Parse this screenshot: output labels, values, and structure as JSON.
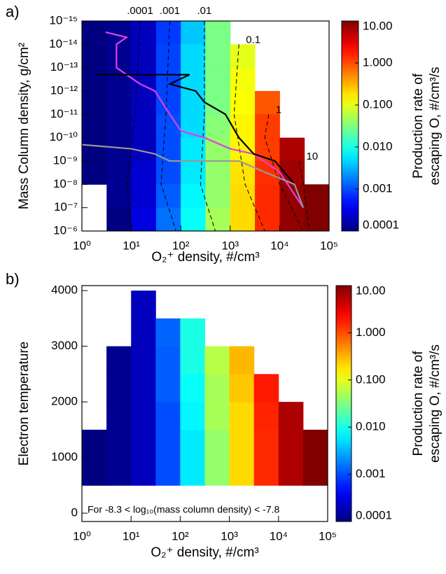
{
  "chart_data": [
    {
      "type": "heatmap",
      "panel_label": "a)",
      "xlabel": "O₂⁺ density, #/cm³",
      "ylabel": "Mass Column density, g/cm²",
      "xscale": "log",
      "yscale": "log",
      "yinvert": true,
      "colormap": "jet",
      "xlim": [
        1,
        100000
      ],
      "ylim": [
        1e-15,
        1e-06
      ],
      "xticks": [
        {
          "value": 1,
          "label": "10⁰"
        },
        {
          "value": 10,
          "label": "10¹"
        },
        {
          "value": 100,
          "label": "10²"
        },
        {
          "value": 1000,
          "label": "10³"
        },
        {
          "value": 10000,
          "label": "10⁴"
        },
        {
          "value": 100000,
          "label": "10⁵"
        }
      ],
      "yticks": [
        {
          "value": 1e-15,
          "label": "10⁻¹⁵"
        },
        {
          "value": 1e-14,
          "label": "10⁻¹⁴"
        },
        {
          "value": 1e-13,
          "label": "10⁻¹³"
        },
        {
          "value": 1e-12,
          "label": "10⁻¹²"
        },
        {
          "value": 1e-11,
          "label": "10⁻¹¹"
        },
        {
          "value": 1e-10,
          "label": "10⁻¹⁰"
        },
        {
          "value": 1e-09,
          "label": "10⁻⁹"
        },
        {
          "value": 1e-08,
          "label": "10⁻⁸"
        },
        {
          "value": 1e-07,
          "label": "10⁻⁷"
        },
        {
          "value": 1e-06,
          "label": "10⁻⁶"
        }
      ],
      "x_bins": [
        1,
        3.16,
        10,
        31.6,
        100,
        316,
        1000,
        3160,
        10000,
        31600,
        100000
      ],
      "y_bins": [
        1e-15,
        1e-14,
        1e-13,
        1e-12,
        1e-11,
        1e-10,
        1e-09,
        1e-08,
        1e-07,
        1e-06
      ],
      "values": [
        [
          0.0001,
          0.00012,
          0.0002,
          0.0008,
          0.004,
          0.03,
          null,
          null,
          null,
          null
        ],
        [
          0.0001,
          0.00012,
          0.0002,
          0.0009,
          0.005,
          0.03,
          0.1,
          null,
          null,
          null
        ],
        [
          0.0001,
          0.00012,
          0.0002,
          0.0009,
          0.005,
          0.03,
          0.12,
          null,
          null,
          null
        ],
        [
          0.0001,
          0.00012,
          0.0002,
          0.0009,
          0.005,
          0.03,
          0.13,
          0.9,
          null,
          null
        ],
        [
          0.0001,
          0.00012,
          0.0002,
          0.001,
          0.005,
          0.035,
          0.15,
          1.2,
          null,
          null
        ],
        [
          0.0001,
          0.00012,
          0.0002,
          0.001,
          0.006,
          0.04,
          0.15,
          1.2,
          6,
          null
        ],
        [
          0.0001,
          0.00012,
          0.00025,
          0.001,
          0.006,
          0.04,
          0.18,
          1.4,
          7,
          null
        ],
        [
          null,
          0.00012,
          0.00025,
          0.0012,
          0.007,
          0.04,
          0.2,
          1.5,
          8,
          10
        ],
        [
          null,
          0.0001,
          0.0003,
          0.0015,
          0.008,
          0.05,
          0.2,
          1.5,
          8,
          10
        ]
      ],
      "lines": [
        {
          "color": "#e040e0",
          "x": [
            3,
            8,
            5,
            5,
            15,
            30,
            60,
            100,
            300,
            1000,
            3000,
            10000,
            30000
          ],
          "y": [
            3e-15,
            5e-15,
            1e-14,
            1e-13,
            5e-13,
            1e-12,
            1e-11,
            5e-11,
            1e-10,
            3e-10,
            5e-10,
            3e-09,
            1e-07
          ]
        },
        {
          "color": "#000000",
          "x": [
            2,
            150,
            60,
            200,
            300,
            800,
            1500,
            3000,
            8000,
            20000,
            30000
          ],
          "y": [
            2e-13,
            2e-13,
            5e-13,
            1e-12,
            3e-12,
            1e-11,
            1e-10,
            5e-10,
            1e-09,
            1e-08,
            1e-07
          ]
        },
        {
          "color": "#999999",
          "x": [
            1,
            10,
            30,
            60,
            300,
            1500,
            5000,
            20000,
            30000
          ],
          "y": [
            2e-10,
            3e-10,
            5e-10,
            1e-09,
            1e-09,
            1e-09,
            3e-09,
            1e-08,
            1e-07
          ]
        }
      ],
      "contours": [
        {
          "label": ".0001",
          "x": [
            15,
            12,
            8,
            10
          ],
          "y": [
            1e-15,
            1e-11,
            1e-08,
            1e-06
          ]
        },
        {
          "label": ".001",
          "x": [
            60,
            50,
            40,
            80
          ],
          "y": [
            1e-15,
            1e-11,
            1e-08,
            1e-06
          ]
        },
        {
          "label": ".01",
          "x": [
            300,
            300,
            250,
            500
          ],
          "y": [
            1e-15,
            1e-11,
            1e-08,
            1e-06
          ]
        },
        {
          "label": "0.1",
          "x": [
            1500,
            1200,
            2000,
            5000
          ],
          "y": [
            1e-14,
            1e-11,
            1e-08,
            1e-06
          ]
        },
        {
          "label": "1",
          "x": [
            6000,
            5000,
            10000,
            30000
          ],
          "y": [
            1e-11,
            1e-10,
            1e-08,
            1e-06
          ]
        },
        {
          "label": "10",
          "x": [
            25000,
            30000,
            40000
          ],
          "y": [
            1e-09,
            1e-08,
            1e-06
          ]
        }
      ],
      "colorbar": {
        "label": [
          "Production rate  of",
          "escaping O, #/cm³/s"
        ],
        "lim": [
          0.0001,
          10
        ],
        "ticks": [
          {
            "value": 10,
            "label": "10.00"
          },
          {
            "value": 1,
            "label": "1.000"
          },
          {
            "value": 0.1,
            "label": "0.100"
          },
          {
            "value": 0.01,
            "label": "0.010"
          },
          0.001,
          0.0001
        ]
      }
    },
    {
      "type": "heatmap",
      "panel_label": "b)",
      "xlabel": "O₂⁺ density, #/cm³",
      "ylabel": "Electron temperature",
      "annotation": "For -8.3 < log₁₀(mass column density) < -7.8",
      "xscale": "log",
      "yscale": "linear",
      "yinvert": false,
      "colormap": "jet",
      "xlim": [
        1,
        100000
      ],
      "ylim": [
        -150,
        4090
      ],
      "xticks": [
        {
          "value": 1,
          "label": "10⁰"
        },
        {
          "value": 10,
          "label": "10¹"
        },
        {
          "value": 100,
          "label": "10²"
        },
        {
          "value": 1000,
          "label": "10³"
        },
        {
          "value": 10000,
          "label": "10⁴"
        },
        {
          "value": 100000,
          "label": "10⁵"
        }
      ],
      "yticks": [
        0,
        1000,
        2000,
        3000,
        4000
      ],
      "x_bins": [
        1,
        3.16,
        10,
        31.6,
        100,
        316,
        1000,
        3160,
        10000,
        31600,
        100000
      ],
      "y_bins": [
        500,
        1000,
        1500,
        2000,
        2500,
        3000,
        3500,
        4000
      ],
      "values": [
        [
          0.0001,
          0.00012,
          0.0002,
          0.001,
          0.006,
          0.04,
          0.2,
          1.5,
          6,
          10
        ],
        [
          0.0001,
          0.00012,
          0.0002,
          0.001,
          0.006,
          0.04,
          0.2,
          1.5,
          6,
          10
        ],
        [
          null,
          0.00012,
          0.0002,
          0.001,
          0.007,
          0.05,
          0.2,
          1.6,
          6,
          null
        ],
        [
          null,
          0.00012,
          0.0002,
          0.0012,
          0.008,
          0.05,
          0.25,
          1.8,
          null,
          null
        ],
        [
          null,
          0.00012,
          0.0002,
          0.0012,
          0.01,
          0.06,
          0.3,
          null,
          null,
          null
        ],
        [
          null,
          null,
          0.0002,
          0.0013,
          0.01,
          null,
          null,
          null,
          null,
          null
        ],
        [
          null,
          null,
          0.0002,
          null,
          null,
          null,
          null,
          null,
          null,
          null
        ]
      ],
      "colorbar": {
        "label": [
          "Production rate  of",
          "escaping O, #/cm³/s"
        ],
        "lim": [
          0.0001,
          10
        ],
        "ticks": [
          {
            "value": 10,
            "label": "10.00"
          },
          {
            "value": 1,
            "label": "1.000"
          },
          {
            "value": 0.1,
            "label": "0.100"
          },
          {
            "value": 0.01,
            "label": "0.010"
          },
          0.001,
          0.0001
        ]
      }
    }
  ]
}
